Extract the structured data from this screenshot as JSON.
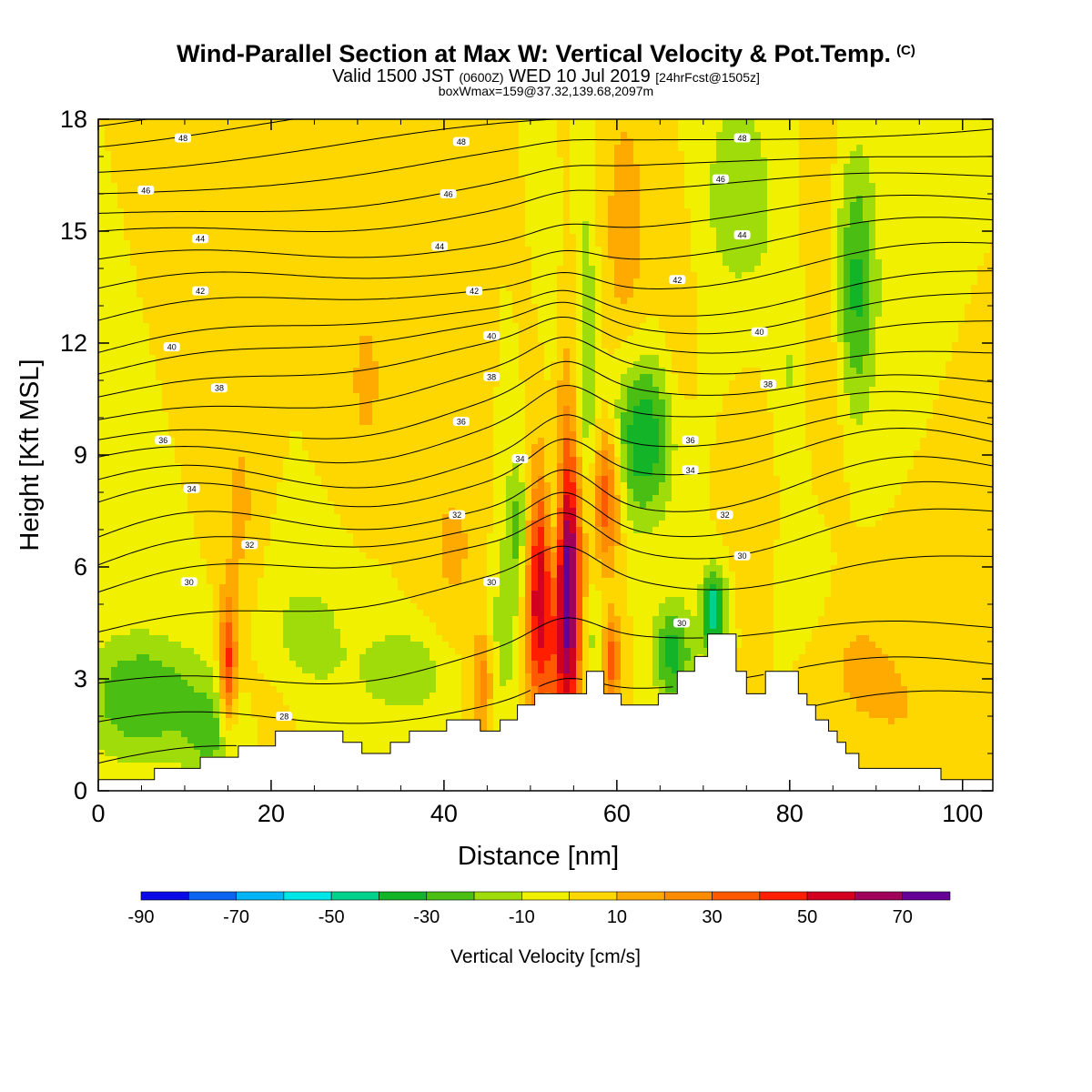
{
  "header": {
    "title": "Wind-Parallel Section at Max W: Vertical Velocity & Pot.Temp.",
    "copyright": "(C)",
    "valid_main": "Valid 1500 JST",
    "valid_utc": "(0600Z)",
    "valid_date": "WED 10 Jul 2019",
    "forecast": "[24hrFcst@1505z]",
    "box_info": "boxWmax=159@37.32,139.68,2097m"
  },
  "chart_data": {
    "type": "heatmap",
    "title": "Wind-Parallel Section at Max W: Vertical Velocity & Pot.Temp.",
    "xlabel": "Distance [nm]",
    "ylabel": "Height [Kft MSL]",
    "xlim": [
      0,
      103.5
    ],
    "ylim": [
      0,
      18
    ],
    "xticks": [
      0,
      20,
      40,
      60,
      80,
      100
    ],
    "yticks": [
      0,
      3,
      6,
      9,
      12,
      15,
      18
    ],
    "colorbar": {
      "label": "Vertical Velocity [cm/s]",
      "bounds": [
        -90,
        -80,
        -70,
        -60,
        -50,
        -40,
        -30,
        -20,
        -10,
        0,
        10,
        20,
        30,
        40,
        50,
        60,
        70,
        80
      ],
      "tick_labels": [
        -90,
        -70,
        -50,
        -30,
        -10,
        10,
        30,
        50,
        70
      ],
      "colors": [
        "#0a0ae6",
        "#0a64f0",
        "#00b4f5",
        "#00e6e6",
        "#00d28c",
        "#14b428",
        "#4bbe14",
        "#a0dc0a",
        "#f0f000",
        "#ffd700",
        "#ffaa00",
        "#ff8c00",
        "#ff5a00",
        "#ff1e00",
        "#d2001e",
        "#a0005a",
        "#640096"
      ]
    },
    "terrain": [
      [
        0,
        0.3
      ],
      [
        6.5,
        0.3
      ],
      [
        6.5,
        0.6
      ],
      [
        11.8,
        0.6
      ],
      [
        11.8,
        0.9
      ],
      [
        16.2,
        0.9
      ],
      [
        16.2,
        1.2
      ],
      [
        20.5,
        1.2
      ],
      [
        20.5,
        1.6
      ],
      [
        28.3,
        1.6
      ],
      [
        28.3,
        1.3
      ],
      [
        30.5,
        1.3
      ],
      [
        30.5,
        1.0
      ],
      [
        33.8,
        1.0
      ],
      [
        33.8,
        1.3
      ],
      [
        36.0,
        1.3
      ],
      [
        36.0,
        1.6
      ],
      [
        40.3,
        1.6
      ],
      [
        40.3,
        1.9
      ],
      [
        44.2,
        1.9
      ],
      [
        44.2,
        1.6
      ],
      [
        46.5,
        1.6
      ],
      [
        46.5,
        1.9
      ],
      [
        48.5,
        1.9
      ],
      [
        48.5,
        2.3
      ],
      [
        50.5,
        2.3
      ],
      [
        50.5,
        2.6
      ],
      [
        56.5,
        2.6
      ],
      [
        56.5,
        3.2
      ],
      [
        58.5,
        3.2
      ],
      [
        58.5,
        2.6
      ],
      [
        60.5,
        2.6
      ],
      [
        60.5,
        2.3
      ],
      [
        64.8,
        2.3
      ],
      [
        64.8,
        2.6
      ],
      [
        67.0,
        2.6
      ],
      [
        67.0,
        3.2
      ],
      [
        69.0,
        3.2
      ],
      [
        69.0,
        3.6
      ],
      [
        70.5,
        3.6
      ],
      [
        70.5,
        4.2
      ],
      [
        73.8,
        4.2
      ],
      [
        73.8,
        3.2
      ],
      [
        75.0,
        3.2
      ],
      [
        75.0,
        2.6
      ],
      [
        77.2,
        2.6
      ],
      [
        77.2,
        3.2
      ],
      [
        81.0,
        3.2
      ],
      [
        81.0,
        2.6
      ],
      [
        82.0,
        2.6
      ],
      [
        82.0,
        2.3
      ],
      [
        83.0,
        2.3
      ],
      [
        83.0,
        1.9
      ],
      [
        84.5,
        1.9
      ],
      [
        84.5,
        1.6
      ],
      [
        85.5,
        1.6
      ],
      [
        85.5,
        1.3
      ],
      [
        86.5,
        1.3
      ],
      [
        86.5,
        1.0
      ],
      [
        88.0,
        1.0
      ],
      [
        88.0,
        0.6
      ],
      [
        97.5,
        0.6
      ],
      [
        97.5,
        0.3
      ],
      [
        103.5,
        0.3
      ]
    ],
    "velocity_features": [
      {
        "x": 5,
        "y": 2.5,
        "sx": 5.0,
        "sy": 1.2,
        "w": -30
      },
      {
        "x": 13.5,
        "y": 1.5,
        "sx": 2.5,
        "sy": 1.0,
        "w": -20
      },
      {
        "x": 24,
        "y": 4.0,
        "sx": 4.0,
        "sy": 1.4,
        "w": -15
      },
      {
        "x": 35.5,
        "y": 3.2,
        "sx": 3.5,
        "sy": 0.8,
        "w": -20
      },
      {
        "x": 46.5,
        "y": 4.0,
        "sx": 1.6,
        "sy": 1.6,
        "w": -15
      },
      {
        "x": 48.5,
        "y": 7.0,
        "sx": 1.1,
        "sy": 1.5,
        "w": -25
      },
      {
        "x": 52.8,
        "y": 7.2,
        "sx": 0.7,
        "sy": 1.8,
        "w": -35
      },
      {
        "x": 53,
        "y": 13.0,
        "sx": 0.9,
        "sy": 2.5,
        "w": -15
      },
      {
        "x": 56.5,
        "y": 11.5,
        "sx": 0.9,
        "sy": 3.5,
        "w": -20
      },
      {
        "x": 57.5,
        "y": 4.0,
        "sx": 1.2,
        "sy": 1.0,
        "w": -15
      },
      {
        "x": 63,
        "y": 9.5,
        "sx": 2.8,
        "sy": 1.6,
        "w": -40
      },
      {
        "x": 66.5,
        "y": 3.7,
        "sx": 1.6,
        "sy": 1.0,
        "w": -35
      },
      {
        "x": 71.2,
        "y": 4.8,
        "sx": 1.0,
        "sy": 0.8,
        "w": -50
      },
      {
        "x": 74,
        "y": 16.0,
        "sx": 3.5,
        "sy": 2.5,
        "w": -15
      },
      {
        "x": 80,
        "y": 10.0,
        "sx": 2.0,
        "sy": 3.0,
        "w": -15
      },
      {
        "x": 87.5,
        "y": 13.5,
        "sx": 1.8,
        "sy": 2.5,
        "w": -35
      },
      {
        "x": 83,
        "y": 6.0,
        "sx": 2.0,
        "sy": 1.5,
        "w": -10
      },
      {
        "x": 15,
        "y": 3.3,
        "sx": 0.7,
        "sy": 1.3,
        "w": 45
      },
      {
        "x": 16.5,
        "y": 7.5,
        "sx": 1.5,
        "sy": 2.5,
        "w": 12
      },
      {
        "x": 31,
        "y": 11.0,
        "sx": 2.0,
        "sy": 2.0,
        "w": 12
      },
      {
        "x": 41,
        "y": 6.5,
        "sx": 2.5,
        "sy": 1.8,
        "w": 12
      },
      {
        "x": 44.5,
        "y": 3.0,
        "sx": 0.9,
        "sy": 1.0,
        "w": 30
      },
      {
        "x": 51,
        "y": 5.2,
        "sx": 1.2,
        "sy": 2.3,
        "w": 58
      },
      {
        "x": 54.3,
        "y": 5.3,
        "sx": 1.2,
        "sy": 2.8,
        "w": 80
      },
      {
        "x": 53.5,
        "y": 12.0,
        "sx": 1.0,
        "sy": 3.0,
        "w": 15
      },
      {
        "x": 58.8,
        "y": 8.0,
        "sx": 1.2,
        "sy": 1.4,
        "w": 42
      },
      {
        "x": 59.3,
        "y": 3.5,
        "sx": 0.8,
        "sy": 0.9,
        "w": 40
      },
      {
        "x": 61,
        "y": 15.0,
        "sx": 2.0,
        "sy": 3.0,
        "w": 15
      },
      {
        "x": 67,
        "y": 12.0,
        "sx": 1.5,
        "sy": 3.0,
        "w": 10
      },
      {
        "x": 77,
        "y": 8.5,
        "sx": 2.5,
        "sy": 2.0,
        "w": 12
      },
      {
        "x": 84,
        "y": 12.0,
        "sx": 2.0,
        "sy": 4.0,
        "w": 15
      },
      {
        "x": 88,
        "y": 3.5,
        "sx": 4.0,
        "sy": 1.5,
        "w": 10
      },
      {
        "x": 95,
        "y": 2.0,
        "sx": 5.0,
        "sy": 1.3,
        "w": 8
      },
      {
        "x": 20,
        "y": 2.5,
        "sx": 3.0,
        "sy": 1.0,
        "w": 8
      }
    ],
    "theta_contours": {
      "levels": [
        26,
        27,
        28,
        29,
        30,
        31,
        32,
        33,
        34,
        35,
        36,
        37,
        38,
        39,
        40,
        41,
        42,
        43,
        44,
        45,
        46,
        47,
        48,
        49,
        50
      ],
      "heights_at_x0": [
        0.6,
        1.6,
        2.8,
        4.5,
        5.5,
        6.1,
        6.7,
        7.5,
        8.1,
        8.8,
        9.4,
        10.1,
        10.8,
        11.4,
        11.9,
        12.6,
        13.3,
        14.0,
        14.8,
        15.4,
        16.1,
        16.8,
        17.5,
        18.0,
        18.5
      ],
      "labels": [
        {
          "text": "28",
          "x": 21.5,
          "y": 2.0
        },
        {
          "text": "30",
          "x": 10.5,
          "y": 5.6
        },
        {
          "text": "30",
          "x": 45.5,
          "y": 5.6
        },
        {
          "text": "30",
          "x": 74.5,
          "y": 6.3
        },
        {
          "text": "30",
          "x": 67.5,
          "y": 4.5
        },
        {
          "text": "32",
          "x": 17.5,
          "y": 6.6
        },
        {
          "text": "32",
          "x": 41.5,
          "y": 7.4
        },
        {
          "text": "32",
          "x": 72.5,
          "y": 7.4
        },
        {
          "text": "34",
          "x": 10.8,
          "y": 8.1
        },
        {
          "text": "34",
          "x": 48.8,
          "y": 8.9
        },
        {
          "text": "34",
          "x": 68.5,
          "y": 8.6
        },
        {
          "text": "36",
          "x": 7.5,
          "y": 9.4
        },
        {
          "text": "36",
          "x": 42.0,
          "y": 9.9
        },
        {
          "text": "36",
          "x": 68.5,
          "y": 9.4
        },
        {
          "text": "38",
          "x": 14.0,
          "y": 10.8
        },
        {
          "text": "38",
          "x": 45.5,
          "y": 11.1
        },
        {
          "text": "38",
          "x": 77.5,
          "y": 10.9
        },
        {
          "text": "40",
          "x": 8.5,
          "y": 11.9
        },
        {
          "text": "40",
          "x": 45.5,
          "y": 12.2
        },
        {
          "text": "40",
          "x": 76.5,
          "y": 12.3
        },
        {
          "text": "42",
          "x": 11.8,
          "y": 13.4
        },
        {
          "text": "42",
          "x": 43.5,
          "y": 13.4
        },
        {
          "text": "42",
          "x": 67.0,
          "y": 13.7
        },
        {
          "text": "44",
          "x": 11.8,
          "y": 14.8
        },
        {
          "text": "44",
          "x": 39.5,
          "y": 14.6
        },
        {
          "text": "44",
          "x": 74.5,
          "y": 14.9
        },
        {
          "text": "46",
          "x": 5.5,
          "y": 16.1
        },
        {
          "text": "46",
          "x": 40.5,
          "y": 16.0
        },
        {
          "text": "46",
          "x": 72.0,
          "y": 16.4
        },
        {
          "text": "48",
          "x": 9.8,
          "y": 17.5
        },
        {
          "text": "48",
          "x": 42.0,
          "y": 17.4
        },
        {
          "text": "48",
          "x": 74.5,
          "y": 17.5
        }
      ]
    },
    "legend": "none"
  }
}
